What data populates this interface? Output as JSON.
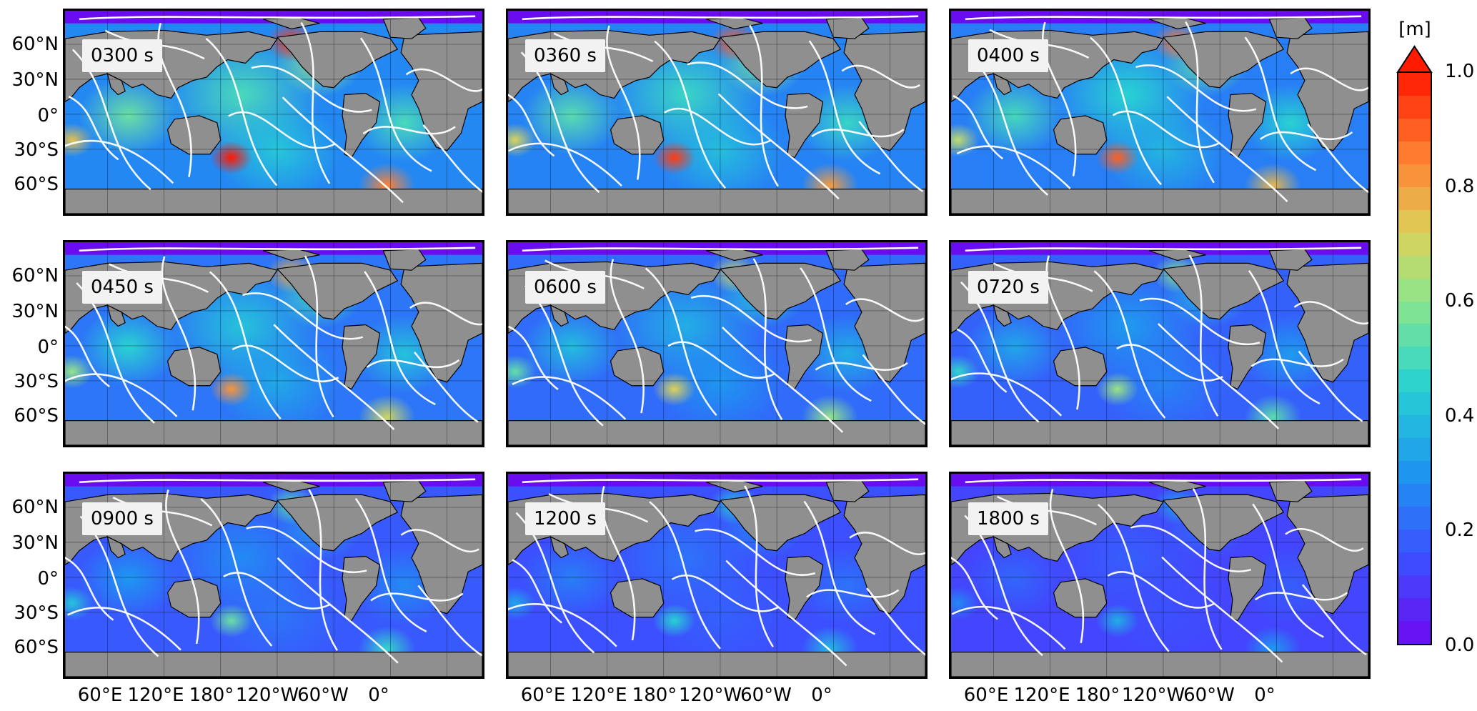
{
  "panels": [
    {
      "label": "0300 s",
      "amp": 1.0
    },
    {
      "label": "0360 s",
      "amp": 0.95
    },
    {
      "label": "0400 s",
      "amp": 0.9
    },
    {
      "label": "0450 s",
      "amp": 0.82
    },
    {
      "label": "0600 s",
      "amp": 0.72
    },
    {
      "label": "0720 s",
      "amp": 0.62
    },
    {
      "label": "0900 s",
      "amp": 0.55
    },
    {
      "label": "1200 s",
      "amp": 0.45
    },
    {
      "label": "1800 s",
      "amp": 0.36
    }
  ],
  "lat_ticks": [
    "60°N",
    "30°N",
    "0°",
    "30°S",
    "60°S"
  ],
  "lon_ticks": [
    "60°E",
    "120°E",
    "180°",
    "120°W",
    "60°W",
    "0°"
  ],
  "colorbar": {
    "unit": "[m]",
    "ticks": [
      "1.0",
      "0.8",
      "0.6",
      "0.4",
      "0.2",
      "0.0"
    ],
    "range": [
      0.0,
      1.0
    ],
    "colormap": "rainbow",
    "extend": "max"
  },
  "colors": {
    "land": "#8f8f8f",
    "ocean_low": "#6a0cf0",
    "ocean_high": "#ff1a00",
    "contours": "#ffffff"
  }
}
